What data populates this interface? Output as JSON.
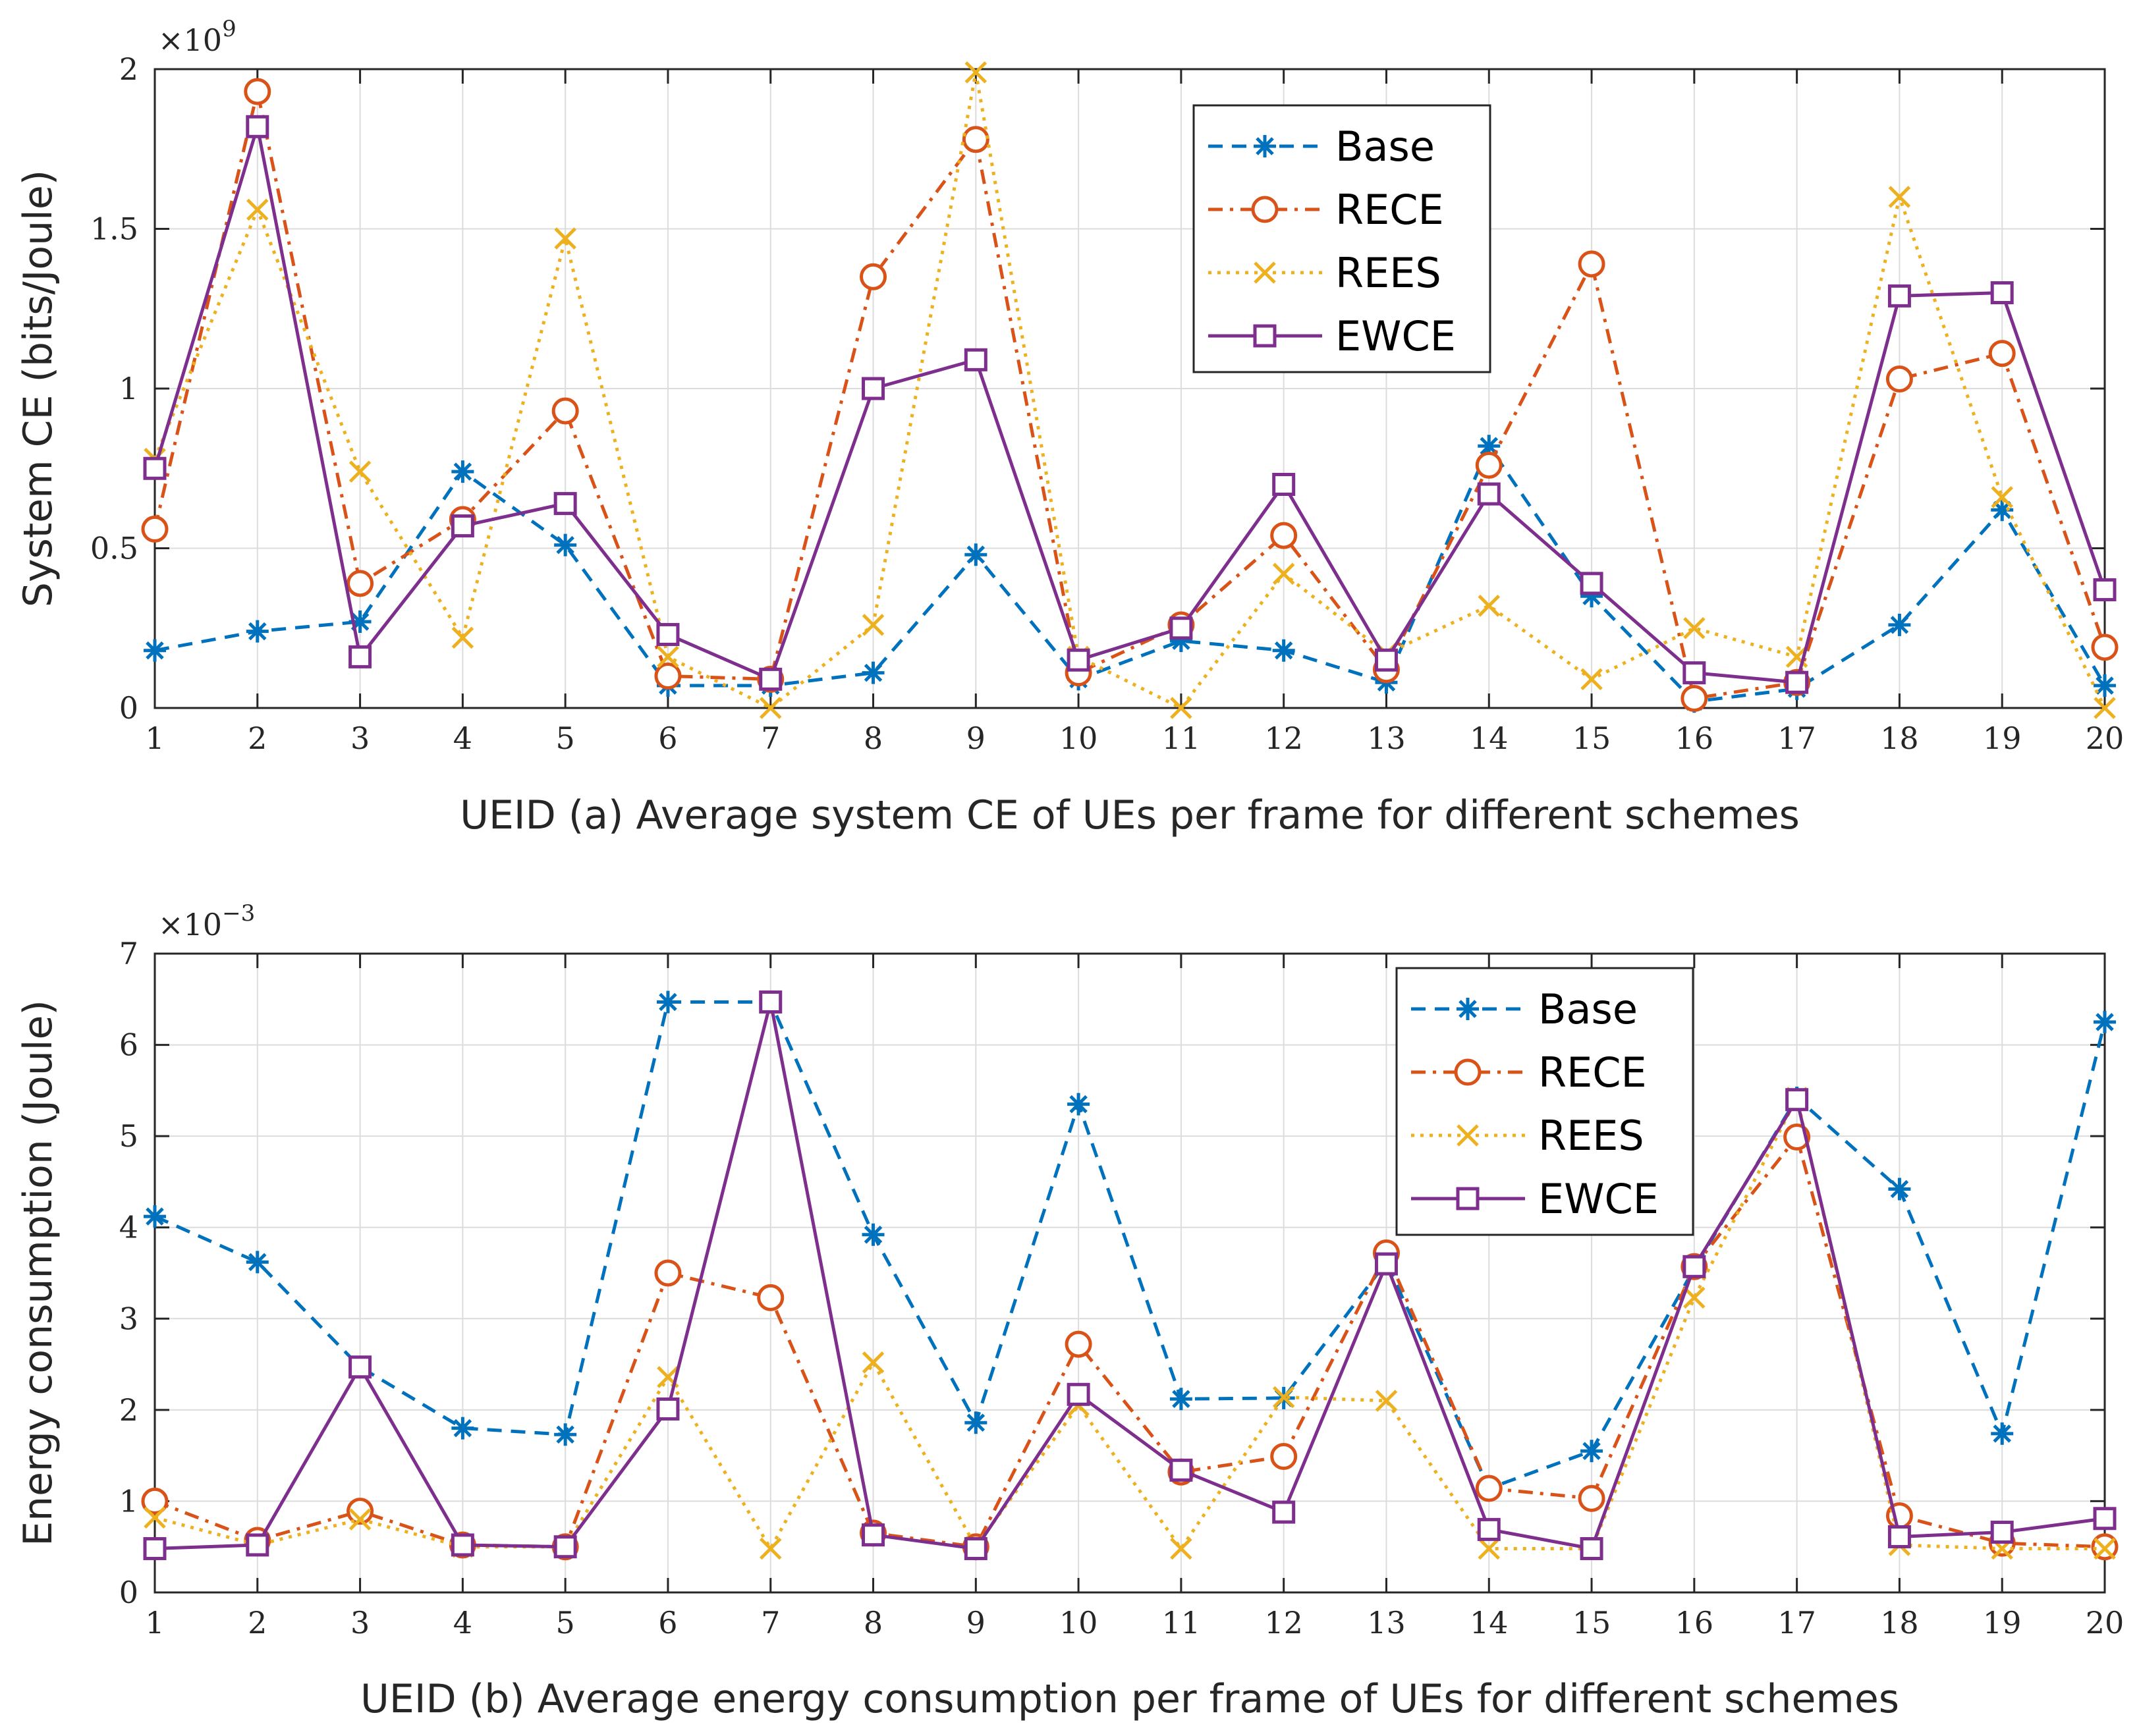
{
  "chart_data": [
    {
      "type": "line",
      "title": "",
      "xlabel": "UEID (a) Average system CE of UEs per frame for different schemes",
      "ylabel": "System CE (bits/Joule)",
      "y_exponent_base": "×10",
      "y_exponent_power": "9",
      "x": [
        1,
        2,
        3,
        4,
        5,
        6,
        7,
        8,
        9,
        10,
        11,
        12,
        13,
        14,
        15,
        16,
        17,
        18,
        19,
        20
      ],
      "x_tick_labels": [
        "1",
        "2",
        "3",
        "4",
        "5",
        "6",
        "7",
        "8",
        "9",
        "10",
        "11",
        "12",
        "13",
        "14",
        "15",
        "16",
        "17",
        "18",
        "19",
        "20"
      ],
      "xlim": [
        1,
        20
      ],
      "ylim": [
        0,
        2
      ],
      "y_ticks": [
        0,
        0.5,
        1,
        1.5,
        2
      ],
      "y_tick_labels": [
        "0",
        "0.5",
        "1",
        "1.5",
        "2"
      ],
      "grid": true,
      "legend_position": "top-center",
      "series": [
        {
          "name": "Base",
          "values": [
            0.18,
            0.24,
            0.27,
            0.74,
            0.51,
            0.07,
            0.07,
            0.11,
            0.48,
            0.09,
            0.21,
            0.18,
            0.08,
            0.82,
            0.35,
            0.02,
            0.06,
            0.26,
            0.62,
            0.07
          ]
        },
        {
          "name": "RECE",
          "values": [
            0.56,
            1.93,
            0.39,
            0.59,
            0.93,
            0.1,
            0.09,
            1.35,
            1.78,
            0.11,
            0.26,
            0.54,
            0.12,
            0.76,
            1.39,
            0.03,
            0.08,
            1.03,
            1.11,
            0.19
          ]
        },
        {
          "name": "REES",
          "values": [
            0.78,
            1.56,
            0.74,
            0.22,
            1.47,
            0.16,
            0.0,
            0.26,
            1.99,
            0.16,
            0.0,
            0.42,
            0.17,
            0.32,
            0.09,
            0.25,
            0.16,
            1.6,
            0.66,
            0.0
          ]
        },
        {
          "name": "EWCE",
          "values": [
            0.75,
            1.82,
            0.16,
            0.57,
            0.64,
            0.23,
            0.09,
            1.0,
            1.09,
            0.15,
            0.25,
            0.7,
            0.15,
            0.67,
            0.39,
            0.11,
            0.08,
            1.29,
            1.3,
            0.37
          ]
        }
      ]
    },
    {
      "type": "line",
      "title": "",
      "xlabel": "UEID (b) Average energy consumption per frame of UEs for different schemes",
      "ylabel": "Energy consumption (Joule)",
      "y_exponent_base": "×10",
      "y_exponent_power": "−3",
      "x": [
        1,
        2,
        3,
        4,
        5,
        6,
        7,
        8,
        9,
        10,
        11,
        12,
        13,
        14,
        15,
        16,
        17,
        18,
        19,
        20
      ],
      "x_tick_labels": [
        "1",
        "2",
        "3",
        "4",
        "5",
        "6",
        "7",
        "8",
        "9",
        "10",
        "11",
        "12",
        "13",
        "14",
        "15",
        "16",
        "17",
        "18",
        "19",
        "20"
      ],
      "xlim": [
        1,
        20
      ],
      "ylim": [
        0,
        7
      ],
      "y_ticks": [
        0,
        1,
        2,
        3,
        4,
        5,
        6,
        7
      ],
      "y_tick_labels": [
        "0",
        "1",
        "2",
        "3",
        "4",
        "5",
        "6",
        "7"
      ],
      "grid": true,
      "legend_position": "top-right",
      "series": [
        {
          "name": "Base",
          "values": [
            4.12,
            3.62,
            2.47,
            1.8,
            1.73,
            6.47,
            6.47,
            3.92,
            1.86,
            5.35,
            2.12,
            2.13,
            3.62,
            1.14,
            1.55,
            3.55,
            5.42,
            4.42,
            1.74,
            6.25
          ]
        },
        {
          "name": "RECE",
          "values": [
            1.0,
            0.57,
            0.89,
            0.52,
            0.5,
            3.5,
            3.23,
            0.65,
            0.5,
            2.72,
            1.32,
            1.49,
            3.72,
            1.14,
            1.03,
            3.57,
            4.99,
            0.84,
            0.54,
            0.5
          ]
        },
        {
          "name": "REES",
          "values": [
            0.82,
            0.52,
            0.8,
            0.5,
            0.5,
            2.36,
            0.48,
            2.52,
            0.5,
            2.05,
            0.48,
            2.14,
            2.1,
            0.48,
            0.48,
            3.23,
            5.42,
            0.52,
            0.48,
            0.48
          ]
        },
        {
          "name": "EWCE",
          "values": [
            0.48,
            0.52,
            2.47,
            0.52,
            0.5,
            2.01,
            6.47,
            0.63,
            0.48,
            2.17,
            1.34,
            0.88,
            3.6,
            0.69,
            0.48,
            3.57,
            5.4,
            0.61,
            0.66,
            0.81
          ]
        }
      ]
    }
  ],
  "series_styles": [
    {
      "name": "Base",
      "color": "#0072BD",
      "dash": "dashed",
      "marker": "asterisk"
    },
    {
      "name": "RECE",
      "color": "#D95319",
      "dash": "dashdot",
      "marker": "circle"
    },
    {
      "name": "REES",
      "color": "#EDB120",
      "dash": "dotted",
      "marker": "x"
    },
    {
      "name": "EWCE",
      "color": "#7E2F8E",
      "dash": "solid",
      "marker": "square"
    }
  ]
}
